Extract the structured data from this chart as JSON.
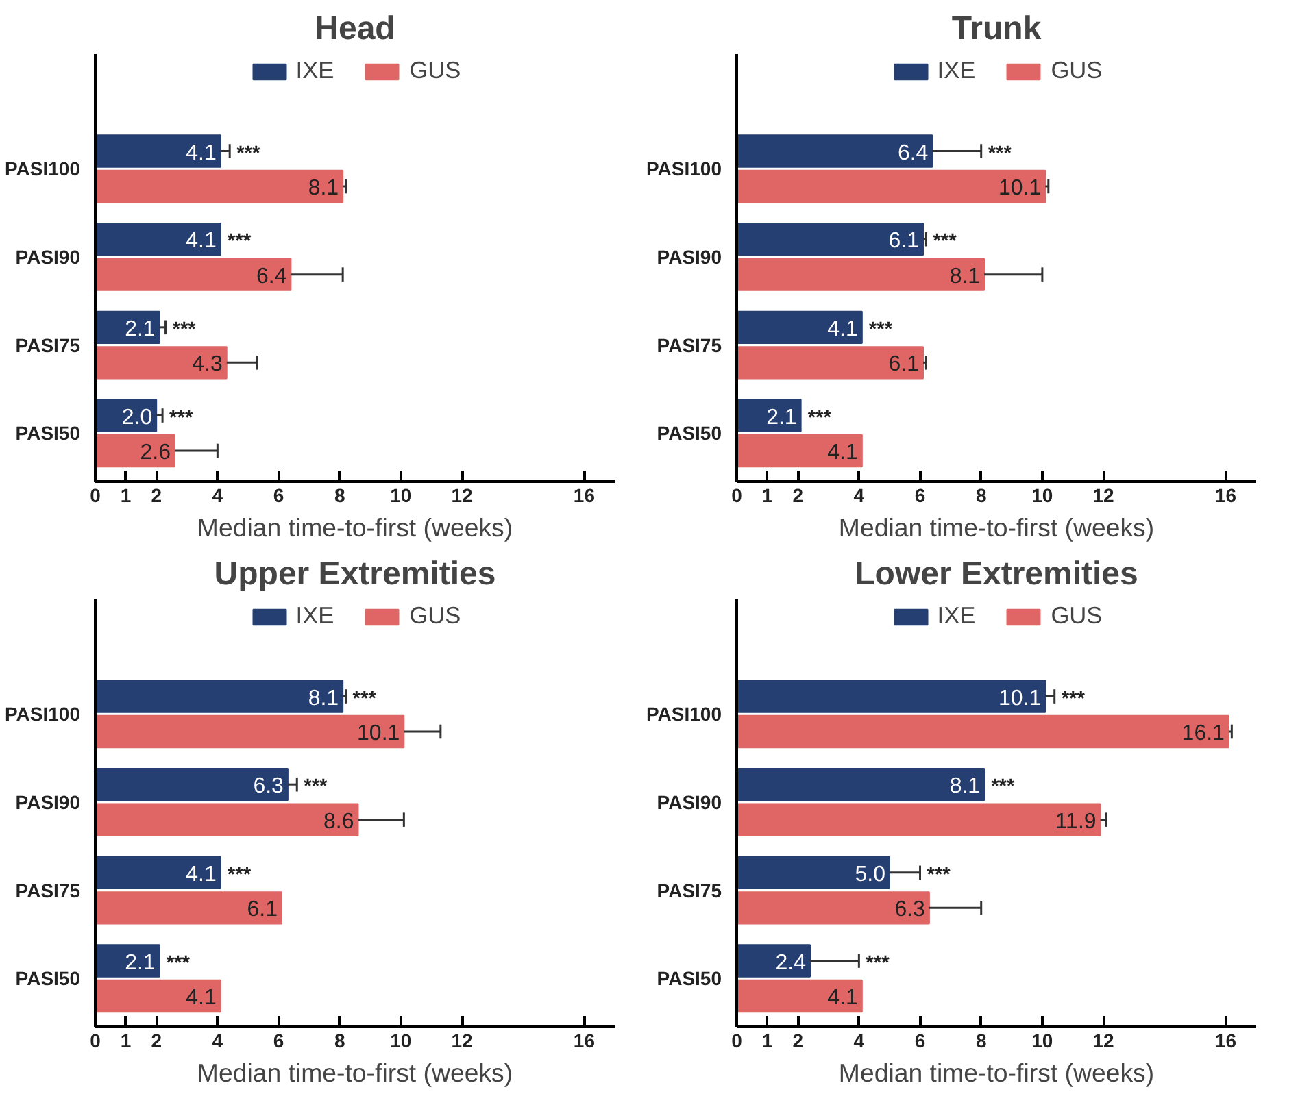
{
  "chart_data": [
    {
      "type": "bar",
      "orientation": "horizontal",
      "title": "Head",
      "xlabel": "Median time-to-first (weeks)",
      "categories": [
        "PASI100",
        "PASI90",
        "PASI75",
        "PASI50"
      ],
      "xlim": [
        0,
        17
      ],
      "xticks": [
        0,
        1,
        2,
        4,
        6,
        8,
        10,
        12,
        16
      ],
      "grid": false,
      "legend": "top",
      "data_labels": true,
      "series": [
        {
          "name": "IXE",
          "color": "#253f73",
          "values": [
            4.1,
            4.1,
            2.1,
            2.0
          ],
          "value_labels": [
            "4.1",
            "4.1",
            "2.1",
            "2.0"
          ],
          "errors": [
            [
              4.1,
              4.4
            ],
            null,
            [
              2.1,
              2.3
            ],
            [
              2.0,
              2.2
            ]
          ]
        },
        {
          "name": "GUS",
          "color": "#e06666",
          "values": [
            8.1,
            6.4,
            4.3,
            2.6
          ],
          "errors": [
            [
              8.1,
              8.2
            ],
            [
              6.4,
              8.1
            ],
            [
              4.3,
              5.3
            ],
            [
              2.6,
              4.0
            ]
          ]
        }
      ],
      "annotations": [
        {
          "text": "***",
          "x": 4.4,
          "y": "PASI100"
        },
        {
          "text": "***",
          "x": 4.1,
          "y": "PASI90"
        },
        {
          "text": "***",
          "x": 2.3,
          "y": "PASI75"
        },
        {
          "text": "***",
          "x": 2.2,
          "y": "PASI50"
        }
      ]
    },
    {
      "type": "bar",
      "orientation": "horizontal",
      "title": "Trunk",
      "xlabel": "Median time-to-first (weeks)",
      "categories": [
        "PASI100",
        "PASI90",
        "PASI75",
        "PASI50"
      ],
      "xlim": [
        0,
        17
      ],
      "xticks": [
        0,
        1,
        2,
        4,
        6,
        8,
        10,
        12,
        16
      ],
      "grid": false,
      "legend": "top",
      "data_labels": true,
      "series": [
        {
          "name": "IXE",
          "color": "#253f73",
          "values": [
            6.4,
            6.1,
            4.1,
            2.1
          ],
          "errors": [
            [
              6.4,
              8.0
            ],
            [
              6.1,
              6.2
            ],
            null,
            null
          ]
        },
        {
          "name": "GUS",
          "color": "#e06666",
          "values": [
            10.1,
            8.1,
            6.1,
            4.1
          ],
          "errors": [
            [
              10.1,
              10.2
            ],
            [
              8.1,
              10.0
            ],
            [
              6.1,
              6.2
            ],
            null
          ]
        }
      ],
      "annotations": [
        {
          "text": "***",
          "x": 8.0,
          "y": "PASI100"
        },
        {
          "text": "***",
          "x": 6.2,
          "y": "PASI90"
        },
        {
          "text": "***",
          "x": 4.1,
          "y": "PASI75"
        },
        {
          "text": "***",
          "x": 2.1,
          "y": "PASI50"
        }
      ]
    },
    {
      "type": "bar",
      "orientation": "horizontal",
      "title": "Upper Extremities",
      "xlabel": "Median time-to-first (weeks)",
      "categories": [
        "PASI100",
        "PASI90",
        "PASI75",
        "PASI50"
      ],
      "xlim": [
        0,
        17
      ],
      "xticks": [
        0,
        1,
        2,
        4,
        6,
        8,
        10,
        12,
        16
      ],
      "grid": false,
      "legend": "top",
      "data_labels": true,
      "series": [
        {
          "name": "IXE",
          "color": "#253f73",
          "values": [
            8.1,
            6.3,
            4.1,
            2.1
          ],
          "errors": [
            [
              8.1,
              8.2
            ],
            [
              6.3,
              6.6
            ],
            null,
            null
          ]
        },
        {
          "name": "GUS",
          "color": "#e06666",
          "values": [
            10.1,
            8.6,
            6.1,
            4.1
          ],
          "errors": [
            [
              10.1,
              11.3
            ],
            [
              8.6,
              10.1
            ],
            null,
            null
          ]
        }
      ],
      "annotations": [
        {
          "text": "***",
          "x": 8.2,
          "y": "PASI100"
        },
        {
          "text": "***",
          "x": 6.6,
          "y": "PASI90"
        },
        {
          "text": "***",
          "x": 4.1,
          "y": "PASI75"
        },
        {
          "text": "***",
          "x": 2.1,
          "y": "PASI50"
        }
      ]
    },
    {
      "type": "bar",
      "orientation": "horizontal",
      "title": "Lower Extremities",
      "xlabel": "Median time-to-first (weeks)",
      "categories": [
        "PASI100",
        "PASI90",
        "PASI75",
        "PASI50"
      ],
      "xlim": [
        0,
        17
      ],
      "xticks": [
        0,
        1,
        2,
        4,
        6,
        8,
        10,
        12,
        16
      ],
      "grid": false,
      "legend": "top",
      "data_labels": true,
      "series": [
        {
          "name": "IXE",
          "color": "#253f73",
          "values": [
            10.1,
            8.1,
            5.0,
            2.4
          ],
          "value_labels": [
            "10.1",
            "8.1",
            "5.0",
            "2.4"
          ],
          "errors": [
            [
              10.1,
              10.4
            ],
            null,
            [
              5.0,
              6.0
            ],
            [
              2.4,
              4.0
            ]
          ]
        },
        {
          "name": "GUS",
          "color": "#e06666",
          "values": [
            16.1,
            11.9,
            6.3,
            4.1
          ],
          "errors": [
            [
              16.1,
              16.2
            ],
            [
              11.9,
              12.1
            ],
            [
              6.3,
              8.0
            ],
            null
          ]
        }
      ],
      "annotations": [
        {
          "text": "***",
          "x": 10.4,
          "y": "PASI100"
        },
        {
          "text": "***",
          "x": 8.1,
          "y": "PASI90"
        },
        {
          "text": "***",
          "x": 6.0,
          "y": "PASI75"
        },
        {
          "text": "***",
          "x": 4.0,
          "y": "PASI50"
        }
      ]
    }
  ]
}
